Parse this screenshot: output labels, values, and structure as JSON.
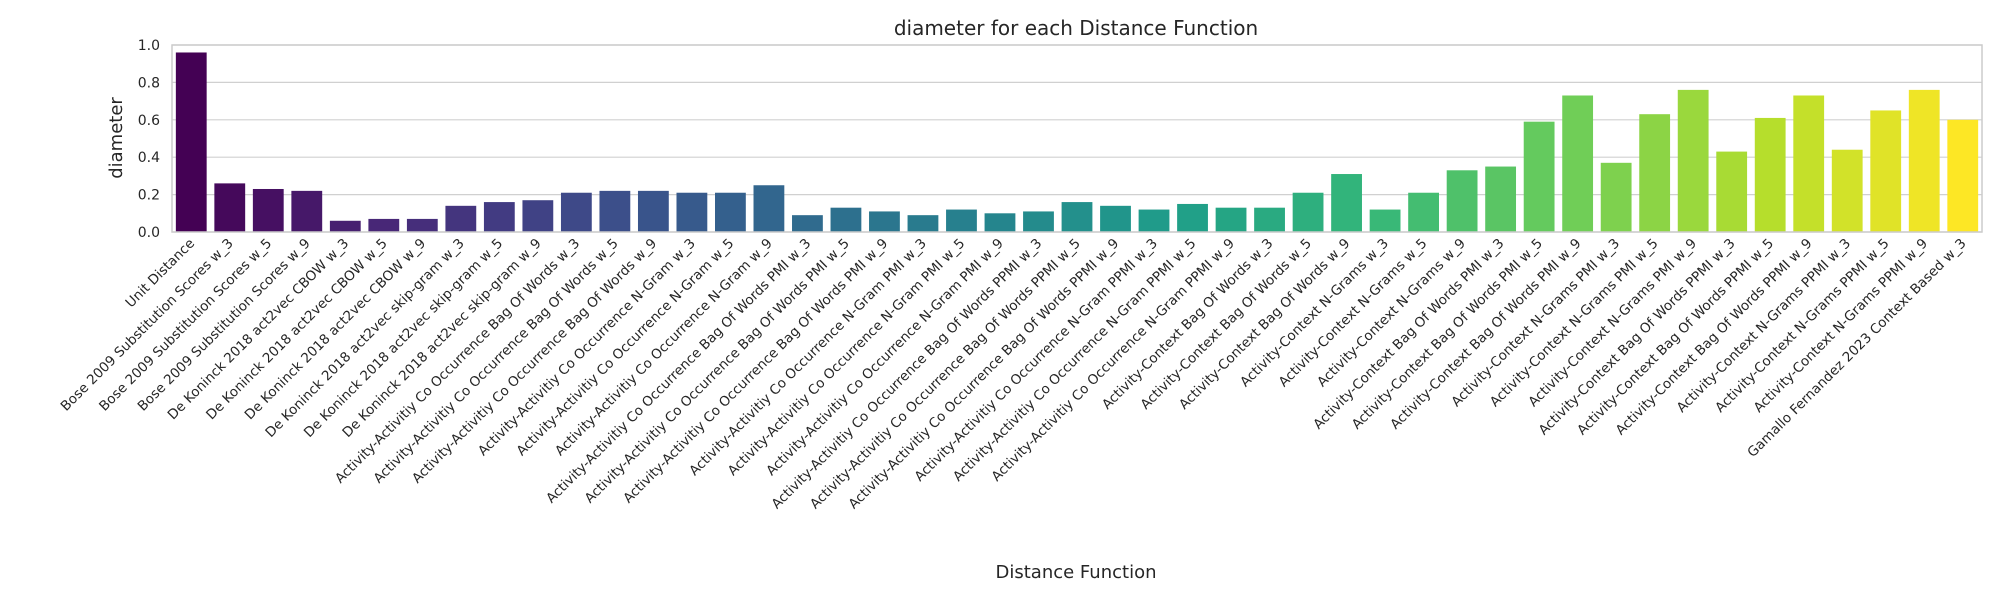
{
  "chart_data": {
    "type": "bar",
    "title": "diameter for each Distance Function",
    "xlabel": "Distance Function",
    "ylabel": "diameter",
    "ylim": [
      0,
      1.0
    ],
    "yticks": [
      "0.0",
      "0.2",
      "0.4",
      "0.6",
      "0.8",
      "1.0"
    ],
    "grid": "horizontal",
    "palette": "viridis",
    "categories": [
      "Unit Distance",
      "Bose 2009 Substitution Scores w_3",
      "Bose 2009 Substitution Scores w_5",
      "Bose 2009 Substitution Scores w_9",
      "De Koninck 2018 act2vec CBOW w_3",
      "De Koninck 2018 act2vec CBOW w_5",
      "De Koninck 2018 act2vec CBOW w_9",
      "De Koninck 2018 act2vec skip-gram w_3",
      "De Koninck 2018 act2vec skip-gram w_5",
      "De Koninck 2018 act2vec skip-gram w_9",
      "Activity-Activitiy Co Occurrence Bag Of Words w_3",
      "Activity-Activitiy Co Occurrence Bag Of Words w_5",
      "Activity-Activitiy Co Occurrence Bag Of Words w_9",
      "Activity-Activitiy Co Occurrence N-Gram w_3",
      "Activity-Activitiy Co Occurrence N-Gram w_5",
      "Activity-Activitiy Co Occurrence N-Gram w_9",
      "Activity-Activitiy Co Occurrence Bag Of Words PMI w_3",
      "Activity-Activitiy Co Occurrence Bag Of Words PMI w_5",
      "Activity-Activitiy Co Occurrence Bag Of Words PMI w_9",
      "Activity-Activitiy Co Occurrence N-Gram PMI w_3",
      "Activity-Activitiy Co Occurrence N-Gram PMI w_5",
      "Activity-Activitiy Co Occurrence N-Gram PMI w_9",
      "Activity-Activitiy Co Occurrence Bag Of Words PPMI w_3",
      "Activity-Activitiy Co Occurrence Bag Of Words PPMI w_5",
      "Activity-Activitiy Co Occurrence Bag Of Words PPMI w_9",
      "Activity-Activitiy Co Occurrence N-Gram PPMI w_3",
      "Activity-Activitiy Co Occurrence N-Gram PPMI w_5",
      "Activity-Activitiy Co Occurrence N-Gram PPMI w_9",
      "Activity-Context Bag Of Words w_3",
      "Activity-Context Bag Of Words w_5",
      "Activity-Context Bag Of Words w_9",
      "Activity-Context N-Grams w_3",
      "Activity-Context N-Grams w_5",
      "Activity-Context N-Grams w_9",
      "Activity-Context Bag Of Words PMI w_3",
      "Activity-Context Bag Of Words PMI w_5",
      "Activity-Context Bag Of Words PMI w_9",
      "Activity-Context N-Grams PMI w_3",
      "Activity-Context N-Grams PMI w_5",
      "Activity-Context N-Grams PMI w_9",
      "Activity-Context Bag Of Words PPMI w_3",
      "Activity-Context Bag Of Words PPMI w_5",
      "Activity-Context Bag Of Words PPMI w_9",
      "Activity-Context N-Grams PPMI w_3",
      "Activity-Context N-Grams PPMI w_5",
      "Activity-Context N-Grams PPMI w_9",
      "Gamallo Fernandez 2023 Context Based w_3"
    ],
    "values": [
      0.96,
      0.26,
      0.23,
      0.22,
      0.06,
      0.07,
      0.07,
      0.14,
      0.16,
      0.17,
      0.21,
      0.22,
      0.22,
      0.21,
      0.21,
      0.25,
      0.09,
      0.13,
      0.11,
      0.09,
      0.12,
      0.1,
      0.11,
      0.16,
      0.14,
      0.12,
      0.15,
      0.13,
      0.13,
      0.21,
      0.31,
      0.12,
      0.21,
      0.33,
      0.35,
      0.59,
      0.73,
      0.37,
      0.63,
      0.76,
      0.43,
      0.61,
      0.73,
      0.44,
      0.65,
      0.76,
      0.6
    ]
  }
}
